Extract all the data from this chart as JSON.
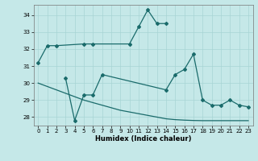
{
  "xlabel": "Humidex (Indice chaleur)",
  "background_color": "#c5e8e8",
  "line_color": "#1a6b6b",
  "grid_color": "#a8d4d4",
  "xlim": [
    -0.5,
    23.5
  ],
  "ylim": [
    27.5,
    34.6
  ],
  "yticks": [
    28,
    29,
    30,
    31,
    32,
    33,
    34
  ],
  "xticks": [
    0,
    1,
    2,
    3,
    4,
    5,
    6,
    7,
    8,
    9,
    10,
    11,
    12,
    13,
    14,
    15,
    16,
    17,
    18,
    19,
    20,
    21,
    22,
    23
  ],
  "s1x": [
    0,
    1,
    2,
    5,
    6,
    10,
    11,
    12,
    13,
    14
  ],
  "s1y": [
    31.2,
    32.2,
    32.2,
    32.3,
    32.3,
    32.3,
    33.3,
    34.3,
    33.5,
    33.5
  ],
  "s2x": [
    3,
    4,
    5,
    6,
    7,
    14,
    15,
    16,
    17,
    18,
    19,
    20,
    21,
    22,
    23
  ],
  "s2y": [
    30.3,
    27.8,
    29.3,
    29.3,
    30.5,
    29.6,
    30.5,
    30.8,
    31.7,
    29.0,
    28.7,
    28.7,
    29.0,
    28.7,
    28.6
  ],
  "s3x": [
    0,
    1,
    2,
    3,
    4,
    5,
    6,
    7,
    8,
    9,
    10,
    11,
    12,
    13,
    14,
    15,
    16,
    17,
    18,
    19,
    20,
    21,
    22,
    23
  ],
  "s3y": [
    30.0,
    29.8,
    29.6,
    29.4,
    29.2,
    29.0,
    28.85,
    28.7,
    28.55,
    28.4,
    28.3,
    28.2,
    28.1,
    28.0,
    27.9,
    27.85,
    27.82,
    27.8,
    27.79,
    27.79,
    27.79,
    27.79,
    27.79,
    27.79
  ],
  "tick_fontsize": 5.0,
  "xlabel_fontsize": 6.0,
  "marker": "D",
  "markersize": 2.0,
  "linewidth": 0.9
}
